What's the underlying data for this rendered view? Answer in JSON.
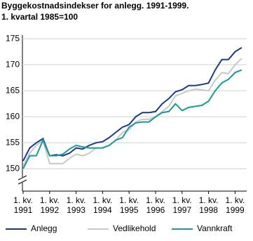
{
  "chart_data": {
    "type": "line",
    "title": "Byggekostnadsindekser for anlegg. 1991-1999.",
    "subtitle": "1. kvartal 1985=100",
    "categories": [
      "1. kv. 1991",
      null,
      null,
      null,
      "1. kv. 1992",
      null,
      null,
      null,
      "1. kv. 1993",
      null,
      null,
      null,
      "1. kv. 1994",
      null,
      null,
      null,
      "1. kv. 1995",
      null,
      null,
      null,
      "1. kv. 1996",
      null,
      null,
      null,
      "1. kv. 1997",
      null,
      null,
      null,
      "1. kv. 1998",
      null,
      null,
      null,
      "1. kv. 1999",
      null
    ],
    "series": [
      {
        "name": "Anlegg",
        "color": "#1b3a8c",
        "values": [
          151.5,
          154,
          155,
          155.8,
          152.5,
          152.7,
          152.5,
          153,
          154,
          153.8,
          154.5,
          155,
          155.2,
          156,
          157,
          158,
          158.5,
          160,
          160.8,
          160.8,
          161,
          162.5,
          163.5,
          164.8,
          165.2,
          166,
          166,
          166.2,
          166.5,
          169,
          171,
          171,
          172.5,
          173.3
        ]
      },
      {
        "name": "Vedlikehold",
        "color": "#c8c8c8",
        "values": [
          150.5,
          153,
          154.5,
          155.5,
          151,
          151,
          151,
          152,
          152.8,
          152.5,
          153,
          154,
          154,
          154.5,
          155.5,
          157,
          157.5,
          159,
          159.5,
          159.5,
          160,
          161,
          162,
          164,
          164.5,
          165,
          165.3,
          165.2,
          165,
          167,
          168.5,
          168.3,
          170,
          171.2
        ]
      },
      {
        "name": "Vannkraft",
        "color": "#1a9a96",
        "values": [
          150,
          152.5,
          152.5,
          155.5,
          152.5,
          152.5,
          152.8,
          153.8,
          154.5,
          154.2,
          154,
          154,
          154,
          154.5,
          155.5,
          156,
          158,
          158.8,
          159,
          159,
          160,
          160.8,
          161,
          162.5,
          161.2,
          161.8,
          162,
          162.2,
          163,
          165,
          166.5,
          167.2,
          168.5,
          169
        ]
      }
    ],
    "ylim": [
      145.7,
      175.7
    ],
    "yticks": [
      150,
      155,
      160,
      165,
      170,
      175
    ],
    "grid": true,
    "legend": "bottom"
  }
}
